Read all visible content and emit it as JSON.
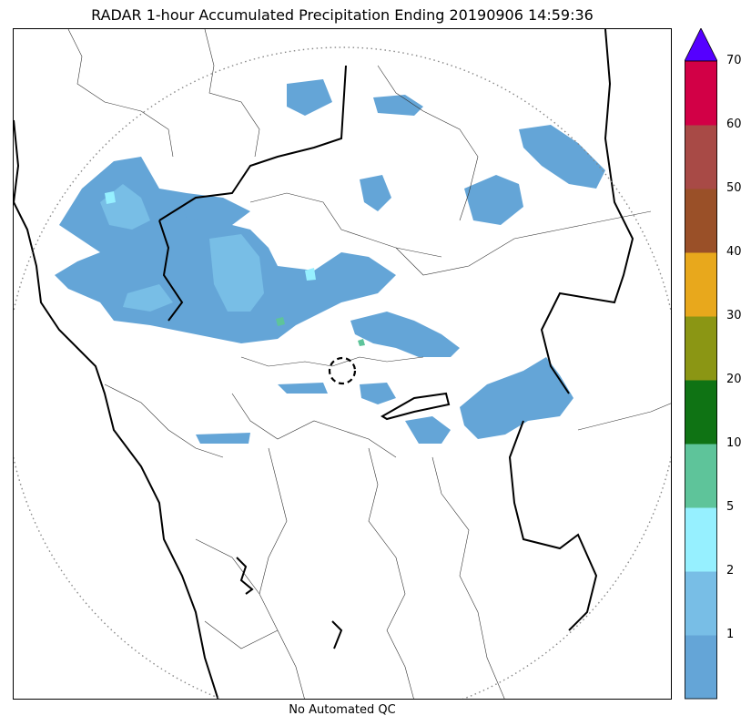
{
  "title": "RADAR 1-hour Accumulated Precipitation Ending 20190906 14:59:36",
  "footnote": "No Automated QC",
  "colorbar": {
    "labels": [
      "1",
      "2",
      "5",
      "10",
      "20",
      "30",
      "40",
      "50",
      "60",
      "70"
    ],
    "colors": [
      "#64a5d7",
      "#78bee6",
      "#96f0ff",
      "#5ec49a",
      "#0f7314",
      "#8b9614",
      "#e8a81c",
      "#9a5028",
      "#a84a46",
      "#d20046"
    ],
    "extend_color": "#5500ff"
  },
  "map": {
    "range_ring": "dotted",
    "radar_site_marker": "dashed-circle",
    "precip_colors": {
      "light": "#64a5d7",
      "moderate": "#78bee6",
      "heavy": "#96f0ff",
      "intense": "#5ec49a"
    }
  }
}
